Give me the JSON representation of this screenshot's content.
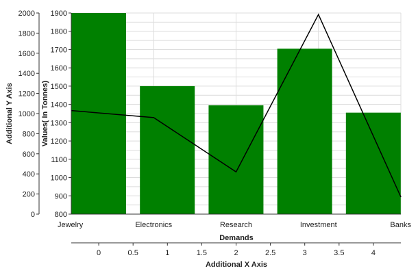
{
  "chart_data": {
    "type": "bar",
    "categories": [
      "Jewelry",
      "Electronics",
      "Research",
      "Investment",
      "Banks"
    ],
    "series": [
      {
        "type": "bar",
        "axis": "primary",
        "values": [
          1900,
          1500,
          1395,
          1705,
          1355
        ]
      },
      {
        "type": "line",
        "axis": "additional",
        "points": [
          {
            "x": -0.4,
            "y": 1030
          },
          {
            "x": 0.8,
            "y": 960
          },
          {
            "x": 2.0,
            "y": 420
          },
          {
            "x": 3.2,
            "y": 1985
          },
          {
            "x": 4.4,
            "y": 170
          }
        ]
      }
    ],
    "xlabel": "Demands",
    "ylabel": "Values( In Tonnes)",
    "ylim": [
      800,
      1900
    ],
    "ytick_step": 100,
    "additional_x_axis": {
      "label": "Additional X Axis",
      "range": [
        -0.4,
        4.4
      ],
      "ticks": [
        "0",
        "0.5",
        "1",
        "1.5",
        "2",
        "2.5",
        "3",
        "3.5",
        "4"
      ]
    },
    "additional_y_axis": {
      "label": "Additional Y Axis",
      "range": [
        0,
        2000
      ],
      "ticks": [
        "0",
        "200",
        "400",
        "600",
        "800",
        "1000",
        "1200",
        "1400",
        "1600",
        "1800",
        "2000"
      ]
    },
    "grid": true,
    "colors": {
      "bar": "#008000",
      "line": "#000000",
      "grid": "#dcdcdc",
      "axis": "#333333"
    }
  }
}
